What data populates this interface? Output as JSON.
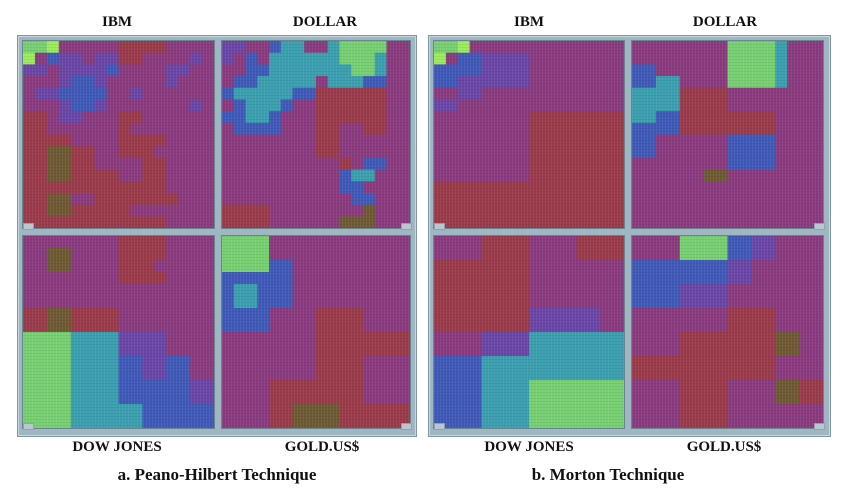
{
  "figure_a": {
    "labels": {
      "ibm": "IBM",
      "dollar": "DOLLAR",
      "dow": "DOW JONES",
      "gold": "GOLD.US$"
    },
    "caption": "a. Peano-Hilbert Technique"
  },
  "figure_b": {
    "labels": {
      "ibm": "IBM",
      "dollar": "DOLLAR",
      "dow": "DOW JONES",
      "gold": "GOLD.US$"
    },
    "caption": "b. Morton Technique"
  },
  "colors": {
    "red": "#9a3a4a",
    "magenta": "#8a3a7e",
    "purple": "#6a46a6",
    "blue": "#3f59b8",
    "cyan": "#3a9fae",
    "green": "#76d070",
    "lime": "#9aec5a",
    "olive": "#6e5a32"
  },
  "panels": [
    {
      "id": "a-ibm",
      "rows": [
        "GGLMMMMMRRRRMMMM",
        "LMBPPMPPRRMMMMPM",
        "PPMPPPPBMMMMPPMM",
        "MMMPBBPMMMMMPMMM",
        "MPPBBBBMMPMMMMMM",
        "MMMPBBPMMMMMMMPM",
        "RRMPPMMMRRMMMMMM",
        "RRMMMMMMRMMMMMMM",
        "RRRRMMMMRRRRMMMM",
        "RROORRMMRRRMMMMM",
        "RROORRMMMMRRMMMM",
        "RROORRRRMMRRMMMM",
        "RRRRRRRRRRRRMMMM",
        "RROOMMRRRRRRRMMM",
        "RROORRRRRMMMMMMM",
        "RRRRRRRRRRRRMMMM"
      ]
    },
    {
      "id": "a-dollar",
      "rows": [
        "PPMMBCCMMCGGGGMM",
        "PMBMCCCCCCGGGCMM",
        "MMBBCCCCCCCGGCMM",
        "MBBCCCCCMCCCBBMM",
        "BCCCCCBBRRRRRRMM",
        "MBCCCBMMRRRRRRMM",
        "BBCCBMMMRRRRRRMM",
        "MBBBBMMMRRMMRRMM",
        "MMMMMMMMRRMMMMMM",
        "MMMMMMMMRRMMMMMM",
        "MMMMMMMMMMRMBBMM",
        "MMMMMMMMMMBCCMMM",
        "MMMMMMMMMMBBMMMM",
        "MMMMMMMMMMMBBMMM",
        "RRRRMMMMMMMMOMMM",
        "RRRRMMMMMMOOOMMM"
      ]
    },
    {
      "id": "a-dow",
      "rows": [
        "MMMMMMMMRRRRMMMM",
        "MMOOMMMMRRRRMMMM",
        "MMOOMMMMRRRMMMMM",
        "MMMMMMMMRRRRMMMM",
        "MMMMMMMMMMMMMMMM",
        "MMMMMMMMMMMMMMMM",
        "RROORRRRMMMMMMMM",
        "RROORRRRMMMMMMMM",
        "GGGGCCCCPPPPMMMM",
        "GGGGCCCCPPPPMMMM",
        "GGGGCCCCBBPPBBMM",
        "GGGGCCCCBBPPBBMM",
        "GGGGCCCCBBBBBBPP",
        "GGGGCCCCBBBBBBPP",
        "GGGGCCCCCCBBBBBB",
        "GGGGCCCCCCBBBBBB"
      ]
    },
    {
      "id": "a-gold",
      "rows": [
        "GGGGMMMMMMMMMMMM",
        "GGGGMMMMMMMMMMMM",
        "GGGGBBMMMMMMMMMM",
        "BBBBBBMMMMMMMMMM",
        "BCCBBBMMMMMMMMMM",
        "BCCBBBMMMMMMMMMM",
        "BBBBMMMMRRRRMMMM",
        "BBBBMMMMRRRRMMMM",
        "MMMMMMMMRRRRRRRR",
        "MMMMMMMMRRRRRRRR",
        "MMMMMMMMRRRRMMMM",
        "MMMMMMMMRRRRMMMM",
        "MMMMRRRRRRRRMMMM",
        "MMMMRRRRRRRRMMMM",
        "MMMMRROOOORRRRRR",
        "MMMMRROOOORRRRRR"
      ]
    },
    {
      "id": "b-ibm",
      "rows": [
        "GGLMMMMMMMMMMMMM",
        "LMBBPPPPMMMMMMMM",
        "BBBBPPPPMMMMMMMM",
        "BBPPPPPPMMMMMMMM",
        "MMPPMMMMMMMMMMMM",
        "PPMMMMMMMMMMMMMM",
        "MMMMMMMMRRRRRRRR",
        "MMMMMMMMRRRRRRRR",
        "MMMMMMMMRRRRRRRR",
        "MMMMMMMMRRRRRRRR",
        "MMMMMMMMRRRRRRRR",
        "MMMMMMMMRRRRRRRR",
        "RRRRRRRRRRRRRRRR",
        "RRRRRRRRRRRRRRRR",
        "RRRRRRRRRRRRRRRR",
        "RRRRRRRRRRRRRRRR"
      ]
    },
    {
      "id": "b-dollar",
      "rows": [
        "MMMMMMMMGGGGCMMM",
        "MMMMMMMMGGGGCMMM",
        "BBMMMMMMGGGGCMMM",
        "BBCCMMMMGGGGCMMM",
        "CCCCRRRRMMMMMMMM",
        "CCCCRRRRMMMMMMMM",
        "CCBBRRRRRRRRMMMM",
        "BBBBRRRRRRRRMMMM",
        "BBMMMMMMBBBBMMMM",
        "BBMMMMMMBBBBMMMM",
        "MMMMMMMMBBBBMMMM",
        "MMMMMMOOMMMMMMMM",
        "MMMMMMMMMMMMMMMM",
        "MMMMMMMMMMMMMMMM",
        "MMMMMMMMMMMMMMMM",
        "MMMMMMMMMMMMMMMM"
      ]
    },
    {
      "id": "b-dow",
      "rows": [
        "MMMMRRRRMMMMRRRR",
        "MMMMRRRRMMMMRRRR",
        "RRRRRRRRMMMMMMMM",
        "RRRRRRRRMMMMMMMM",
        "RRRRRRRRMMMMMMMM",
        "RRRRRRRRMMMMMMMM",
        "RRRRRRRRPPPPPPMM",
        "RRRRRRRRPPPPPPMM",
        "MMMMPPPPCCCCCCCC",
        "MMMMPPPPCCCCCCCC",
        "BBBBCCCCCCCCCCCC",
        "BBBBCCCCCCCCCCCC",
        "BBBBCCCCGGGGGGGG",
        "BBBBCCCCGGGGGGGG",
        "BBBBCCCCGGGGGGGG",
        "BBBBCCCCGGGGGGGG"
      ]
    },
    {
      "id": "b-gold",
      "rows": [
        "MMMMGGGGBBPPMMMM",
        "MMMMGGGGBBPPMMMM",
        "BBBBBBBBPPMMMMMM",
        "BBBBBBBBPPMMMMMM",
        "BBBBPPPPMMMMMMMM",
        "BBBBPPPPMMMMMMMM",
        "MMMMMMMMRRRRMMMM",
        "MMMMMMMMRRRRMMMM",
        "MMMMRRRRRRRROOMM",
        "MMMMRRRRRRRROOMM",
        "RRRRRRRRRRRRMMMM",
        "RRRRRRRRRRRRMMMM",
        "MMMMRRRRMMMMOORR",
        "MMMMRRRRMMMMOORR",
        "MMMMRRRRMMMMMMMM",
        "MMMMRRRRMMMMMMMM"
      ]
    }
  ]
}
